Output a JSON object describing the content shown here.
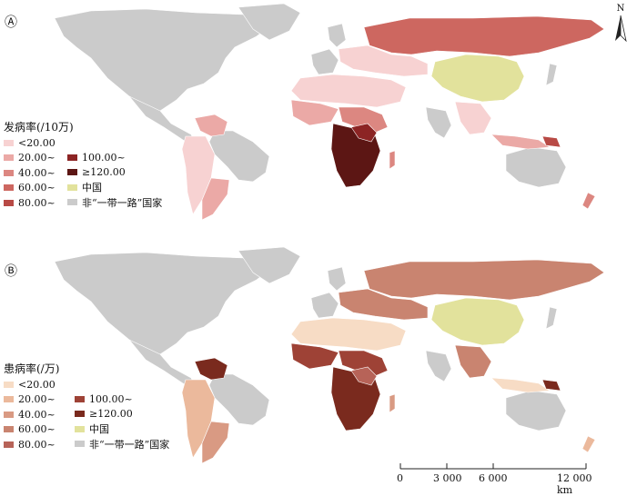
{
  "panel_a": {
    "label": "Ⓐ",
    "legend_title": "发病率(/10万)",
    "legend": [
      {
        "label": "<20.00",
        "color": "#f7d2d2"
      },
      {
        "label": "20.00~",
        "color": "#eba9a6"
      },
      {
        "label": "40.00~",
        "color": "#dc8781"
      },
      {
        "label": "60.00~",
        "color": "#cd6760"
      },
      {
        "label": "80.00~",
        "color": "#b84a45"
      },
      {
        "label": "100.00~",
        "color": "#8c2424"
      },
      {
        "label": "≥120.00",
        "color": "#5c1614"
      },
      {
        "label": "中国",
        "color": "#e2e29c"
      },
      {
        "label": "非“一带一路”国家",
        "color": "#cbcbcb"
      }
    ]
  },
  "panel_b": {
    "label": "Ⓑ",
    "legend_title": "患病率(/万)",
    "legend": [
      {
        "label": "<20.00",
        "color": "#f7dcc5"
      },
      {
        "label": "20.00~",
        "color": "#ebb99c"
      },
      {
        "label": "40.00~",
        "color": "#d99a83"
      },
      {
        "label": "60.00~",
        "color": "#c98470"
      },
      {
        "label": "80.00~",
        "color": "#b76358"
      },
      {
        "label": "100.00~",
        "color": "#9e4236"
      },
      {
        "label": "≥120.00",
        "color": "#7a2a1e"
      },
      {
        "label": "中国",
        "color": "#e2e29c"
      },
      {
        "label": "非“一带一路”国家",
        "color": "#cbcbcb"
      }
    ]
  },
  "north_label": "N",
  "scale": {
    "ticks": [
      "0",
      "3 000",
      "6 000",
      "12 000 km"
    ]
  }
}
